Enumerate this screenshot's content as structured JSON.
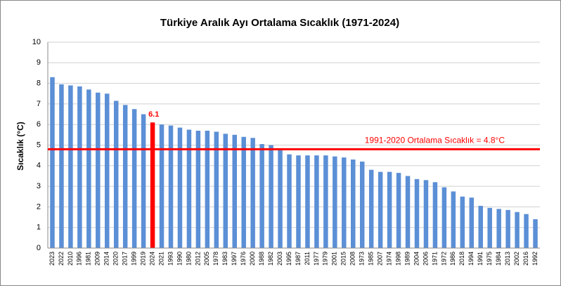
{
  "chart_data": {
    "type": "bar",
    "title": "Türkiye Aralık Ayı Ortalama Sıcaklık (1971-2024)",
    "y_label": "Sıcaklık (°C)",
    "categories": [
      "2023",
      "2022",
      "2010",
      "1996",
      "1981",
      "2009",
      "2014",
      "2020",
      "2017",
      "1999",
      "2019",
      "2024",
      "2021",
      "1993",
      "1990",
      "1980",
      "2012",
      "2005",
      "1978",
      "1983",
      "1997",
      "1976",
      "2000",
      "1988",
      "1982",
      "2003",
      "1995",
      "1987",
      "2011",
      "1977",
      "1979",
      "2001",
      "2015",
      "2008",
      "1973",
      "1985",
      "2007",
      "1974",
      "1998",
      "1989",
      "2004",
      "2006",
      "1971",
      "1972",
      "1986",
      "2018",
      "1994",
      "1991",
      "1975",
      "1984",
      "2013",
      "2002",
      "2016",
      "1992"
    ],
    "values": [
      8.3,
      7.95,
      7.9,
      7.85,
      7.7,
      7.55,
      7.5,
      7.15,
      6.95,
      6.75,
      6.5,
      6.1,
      6.0,
      5.95,
      5.85,
      5.75,
      5.7,
      5.7,
      5.65,
      5.55,
      5.5,
      5.4,
      5.35,
      5.05,
      5.0,
      4.8,
      4.55,
      4.5,
      4.5,
      4.5,
      4.5,
      4.45,
      4.4,
      4.3,
      4.2,
      3.8,
      3.7,
      3.7,
      3.65,
      3.5,
      3.35,
      3.3,
      3.2,
      2.95,
      2.75,
      2.5,
      2.45,
      2.05,
      1.95,
      1.9,
      1.85,
      1.75,
      1.65,
      1.4
    ],
    "color": "#5b8fd6",
    "highlight": {
      "category": "2024",
      "color": "#ff0000"
    },
    "reference_line": {
      "value": 4.8,
      "label": "1991-2020 Ortalama Sıcaklık = 4.8°C",
      "color": "#ff0000"
    },
    "ylim": [
      0,
      10
    ],
    "yticks": [
      0,
      1,
      2,
      3,
      4,
      5,
      6,
      7,
      8,
      9,
      10
    ],
    "grid": true
  }
}
